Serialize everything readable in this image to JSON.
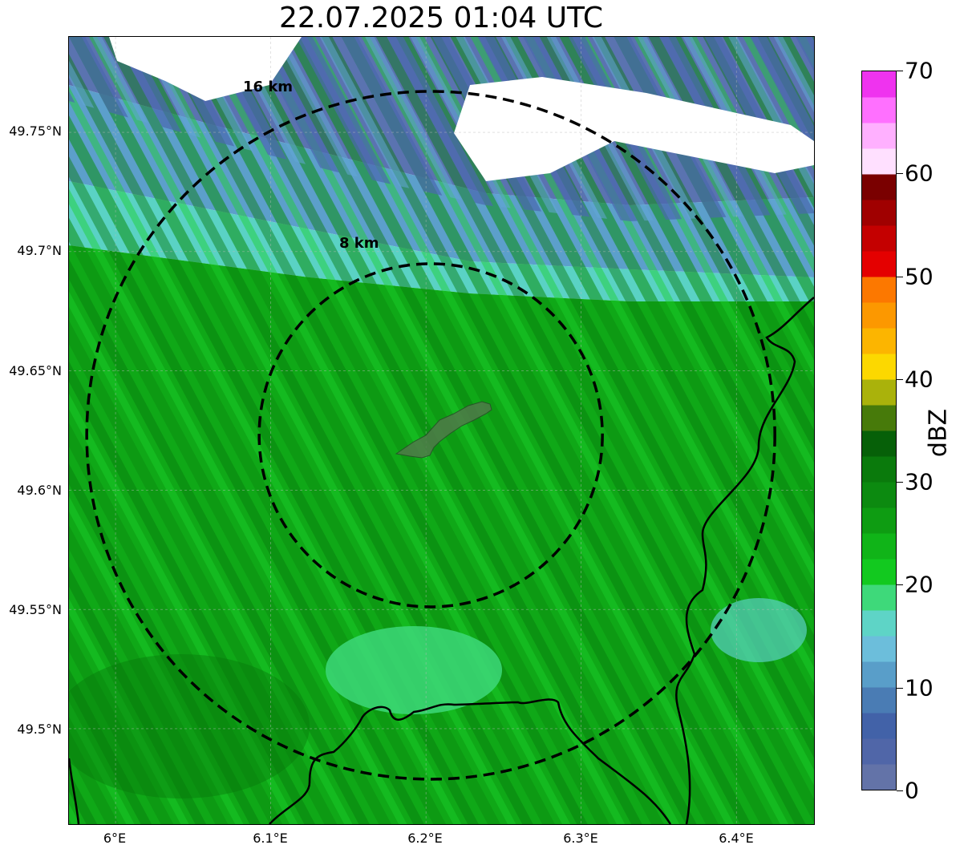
{
  "title": "22.07.2025 01:04 UTC",
  "map": {
    "lat_labels": [
      "49.75°N",
      "49.7°N",
      "49.65°N",
      "49.6°N",
      "49.55°N",
      "49.5°N"
    ],
    "lon_labels": [
      "6°E",
      "6.1°E",
      "6.2°E",
      "6.3°E",
      "6.4°E"
    ],
    "ring_labels": [
      "16 km",
      "8 km"
    ],
    "center_lon": 6.2,
    "center_lat": 49.623,
    "lon_range": [
      5.97,
      6.45
    ],
    "lat_range": [
      49.46,
      49.79
    ]
  },
  "colorbar": {
    "unit": "dBZ",
    "tick_labels": [
      "0",
      "10",
      "20",
      "30",
      "40",
      "50",
      "60",
      "70"
    ],
    "range": [
      0,
      70
    ],
    "colors": [
      "#6373a8",
      "#5066a8",
      "#4262a8",
      "#4a7cb4",
      "#599ec9",
      "#6cbedb",
      "#5ed4c6",
      "#3ed97a",
      "#12c91f",
      "#10b418",
      "#0e9c12",
      "#0c8a10",
      "#0a7a0c",
      "#066008",
      "#477a0a",
      "#aab20b",
      "#fcd800",
      "#fcb500",
      "#fc9800",
      "#fc7800",
      "#e40000",
      "#c40000",
      "#a00000",
      "#7a0000",
      "#ffe0ff",
      "#ffb0ff",
      "#ff70ff",
      "#ef33ef"
    ]
  }
}
